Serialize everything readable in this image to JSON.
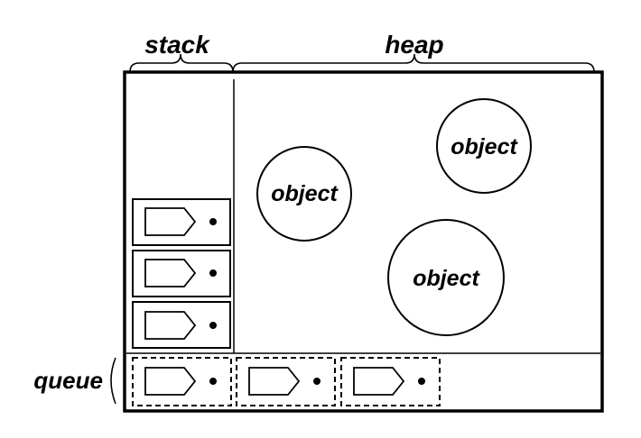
{
  "labels": {
    "stack": "stack",
    "heap": "heap",
    "queue": "queue"
  },
  "heap": {
    "objects": [
      {
        "label": "object"
      },
      {
        "label": "object"
      },
      {
        "label": "object"
      }
    ]
  },
  "stack": {
    "frame_count": 3,
    "frame_style": "solid"
  },
  "queue": {
    "message_count": 3,
    "message_style": "dashed"
  },
  "colors": {
    "stroke": "#000000",
    "background": "#ffffff"
  }
}
